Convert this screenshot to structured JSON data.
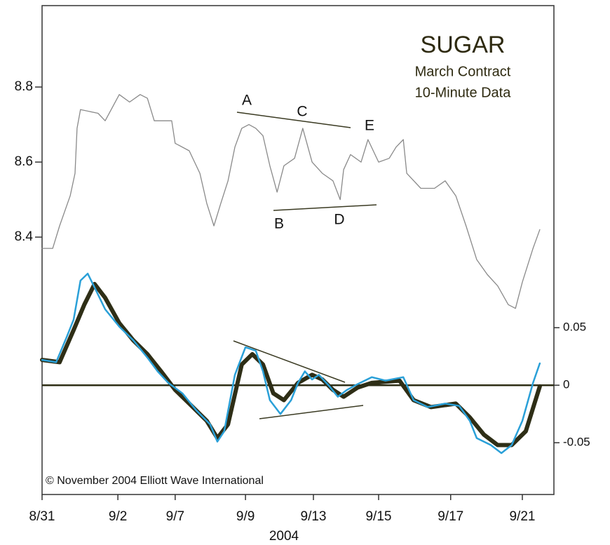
{
  "chart_data": {
    "type": "line",
    "title": "SUGAR",
    "subtitle": [
      "March Contract",
      "10-Minute Data"
    ],
    "annotations": [
      "A",
      "B",
      "C",
      "D",
      "E"
    ],
    "copyright": "© November 2004 Elliott Wave International",
    "xlabel": "2004",
    "xlim": [
      0,
      14.92
    ],
    "xticks": [
      {
        "value": 0,
        "label": "8/31"
      },
      {
        "value": 2.21,
        "label": "9/2"
      },
      {
        "value": 3.88,
        "label": "9/7"
      },
      {
        "value": 5.93,
        "label": "9/9"
      },
      {
        "value": 7.91,
        "label": "9/13"
      },
      {
        "value": 9.81,
        "label": "9/15"
      },
      {
        "value": 11.91,
        "label": "9/17"
      },
      {
        "value": 14.0,
        "label": "9/21"
      }
    ],
    "ylim": [
      7.714,
      9.017
    ],
    "yticks": [
      8.4,
      8.6,
      8.8
    ],
    "y2lim": [
      -0.095,
      0.33
    ],
    "y2ticks": [
      -0.05,
      0,
      0.05
    ],
    "series": [
      {
        "name": "Price",
        "color": "#8a8a8a",
        "axis": "y",
        "x": [
          0,
          0.31,
          0.51,
          0.82,
          0.96,
          1.02,
          1.12,
          1.63,
          1.84,
          2.25,
          2.55,
          2.86,
          3.07,
          3.27,
          3.78,
          3.88,
          4.29,
          4.6,
          4.8,
          5.01,
          5.21,
          5.42,
          5.62,
          5.82,
          6.03,
          6.23,
          6.44,
          6.64,
          6.85,
          7.05,
          7.36,
          7.6,
          7.87,
          8.17,
          8.48,
          8.69,
          8.79,
          8.99,
          9.3,
          9.5,
          9.81,
          10.12,
          10.32,
          10.53,
          10.63,
          11.04,
          11.44,
          11.75,
          12.06,
          12.36,
          12.67,
          12.98,
          13.28,
          13.59,
          13.8,
          14.0,
          14.31,
          14.51
        ],
        "values": [
          8.37,
          8.37,
          8.43,
          8.51,
          8.57,
          8.69,
          8.74,
          8.73,
          8.71,
          8.78,
          8.76,
          8.78,
          8.77,
          8.71,
          8.71,
          8.65,
          8.63,
          8.57,
          8.49,
          8.43,
          8.49,
          8.55,
          8.64,
          8.69,
          8.7,
          8.69,
          8.67,
          8.59,
          8.52,
          8.59,
          8.61,
          8.69,
          8.6,
          8.57,
          8.55,
          8.5,
          8.58,
          8.62,
          8.6,
          8.66,
          8.6,
          8.61,
          8.64,
          8.66,
          8.57,
          8.53,
          8.53,
          8.55,
          8.51,
          8.43,
          8.34,
          8.3,
          8.27,
          8.22,
          8.21,
          8.28,
          8.37,
          8.42
        ]
      },
      {
        "name": "Fast",
        "color": "#2aa0d8",
        "axis": "y2",
        "x": [
          0,
          0.41,
          0.72,
          0.92,
          1.12,
          1.33,
          1.53,
          1.84,
          2.25,
          2.66,
          3.07,
          3.37,
          3.68,
          4.09,
          4.5,
          4.9,
          5.11,
          5.31,
          5.62,
          5.93,
          6.23,
          6.44,
          6.64,
          6.95,
          7.26,
          7.46,
          7.66,
          7.87,
          8.07,
          8.38,
          8.62,
          8.89,
          9.2,
          9.61,
          10.01,
          10.53,
          10.83,
          11.24,
          11.75,
          12.16,
          12.47,
          12.67,
          13.08,
          13.39,
          13.69,
          14.0,
          14.31,
          14.51
        ],
        "values": [
          0.022,
          0.02,
          0.042,
          0.057,
          0.091,
          0.097,
          0.085,
          0.066,
          0.051,
          0.039,
          0.024,
          0.012,
          0.002,
          -0.007,
          -0.022,
          -0.034,
          -0.049,
          -0.04,
          0.009,
          0.033,
          0.03,
          0.012,
          -0.013,
          -0.025,
          -0.013,
          0.002,
          0.012,
          0.005,
          0.009,
          -0.001,
          -0.01,
          -0.004,
          0.001,
          0.007,
          0.004,
          0.007,
          -0.013,
          -0.019,
          -0.016,
          -0.018,
          -0.031,
          -0.046,
          -0.052,
          -0.059,
          -0.052,
          -0.031,
          0.002,
          0.019
        ]
      },
      {
        "name": "Slow",
        "color": "#2e2e16",
        "axis": "y2",
        "x": [
          0,
          0.51,
          0.92,
          1.23,
          1.53,
          1.84,
          2.25,
          2.66,
          3.07,
          3.47,
          3.88,
          4.29,
          4.8,
          5.11,
          5.42,
          5.82,
          6.13,
          6.44,
          6.74,
          7.05,
          7.46,
          7.87,
          8.17,
          8.48,
          8.79,
          9.2,
          9.61,
          10.42,
          10.83,
          11.34,
          12.06,
          12.47,
          12.88,
          13.28,
          13.69,
          14.1,
          14.51
        ],
        "values": [
          0.022,
          0.02,
          0.048,
          0.07,
          0.088,
          0.076,
          0.054,
          0.039,
          0.027,
          0.012,
          -0.004,
          -0.016,
          -0.031,
          -0.046,
          -0.034,
          0.018,
          0.027,
          0.018,
          -0.007,
          -0.013,
          0.002,
          0.009,
          0.005,
          -0.004,
          -0.01,
          -0.002,
          0.002,
          0.004,
          -0.013,
          -0.019,
          -0.016,
          -0.028,
          -0.043,
          -0.052,
          -0.052,
          -0.04,
          -0.001
        ]
      }
    ]
  }
}
